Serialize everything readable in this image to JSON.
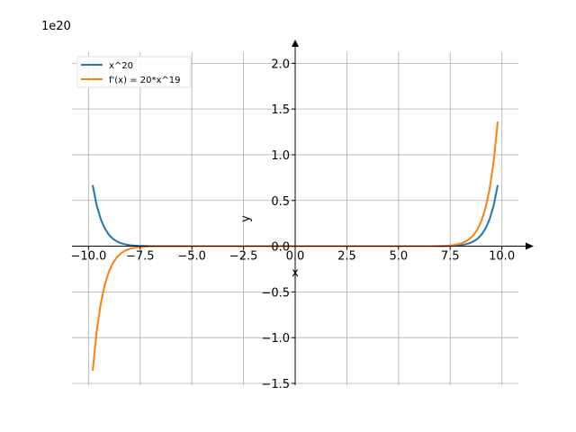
{
  "chart_data": {
    "type": "line",
    "title": "",
    "xlabel": "x",
    "ylabel": "y",
    "y_offset_label": "1e20",
    "xlim": [
      -10.8,
      10.8
    ],
    "ylim": [
      -1.52,
      2.22
    ],
    "grid": true,
    "legend_position": "top-left",
    "x_ticks": [
      -10.0,
      -7.5,
      -5.0,
      -2.5,
      0.0,
      2.5,
      5.0,
      7.5,
      10.0
    ],
    "x_tick_labels": [
      "−10.0",
      "−7.5",
      "−5.0",
      "−2.5",
      "0.0",
      "2.5",
      "5.0",
      "7.5",
      "10.0"
    ],
    "y_ticks": [
      -1.5,
      -1.0,
      -0.5,
      0.0,
      0.5,
      1.0,
      1.5,
      2.0
    ],
    "y_tick_labels": [
      "−1.5",
      "−1.0",
      "−0.5",
      "0.0",
      "0.5",
      "1.0",
      "1.5",
      "2.0"
    ],
    "x_range": [
      -9.8,
      9.8
    ],
    "series": [
      {
        "name": "x^20",
        "color": "#1f77b4",
        "exponent": 20,
        "coefficient": 1
      },
      {
        "name": "f'(x) = 20*x^19",
        "color": "#ff7f0e",
        "exponent": 19,
        "coefficient": 20
      }
    ],
    "y_scale_note": "y values are expressed in units of 1e20"
  }
}
